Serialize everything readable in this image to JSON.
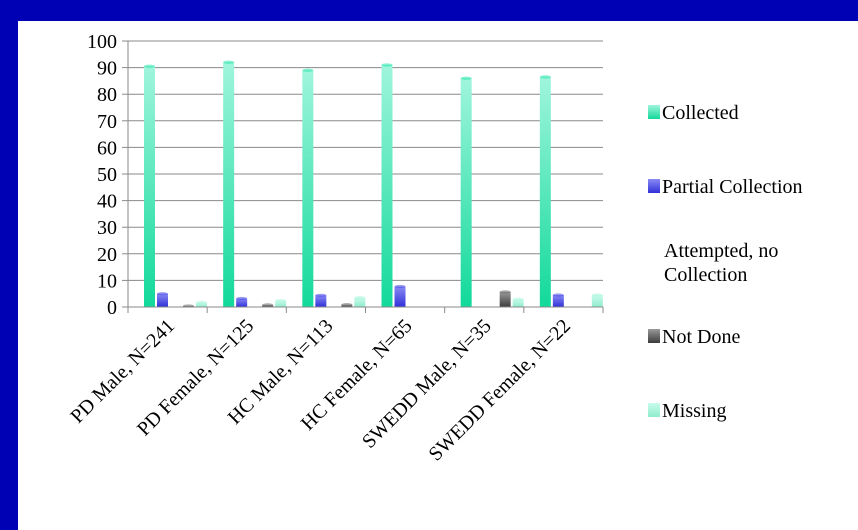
{
  "chart_data": {
    "type": "bar",
    "title": "",
    "xlabel": "",
    "ylabel": "",
    "ylim": [
      0,
      100
    ],
    "yticks": [
      0,
      10,
      20,
      30,
      40,
      50,
      60,
      70,
      80,
      90,
      100
    ],
    "grid": true,
    "legend_position": "right",
    "categories": [
      "PD Male, N=241",
      "PD Female, N=125",
      "HC Male, N=113",
      "HC Female, N=65",
      "SWEDD Male, N=35",
      "SWEDD Female, N=22"
    ],
    "series": [
      {
        "name": "Collected",
        "color": "#1fe3a6",
        "values": [
          90.5,
          92,
          89,
          91,
          86,
          86.5
        ]
      },
      {
        "name": "Partial Collection",
        "color": "#4a4ae6",
        "values": [
          5,
          3.2,
          4.4,
          7.7,
          0,
          4.5
        ]
      },
      {
        "name": "Attempted, no Collection",
        "color": "#ffffff",
        "values": [
          0,
          0,
          0,
          0,
          0,
          0
        ]
      },
      {
        "name": "Not Done",
        "color": "#6b6b6b",
        "values": [
          0.4,
          0.8,
          0.9,
          0,
          5.7,
          0
        ]
      },
      {
        "name": "Missing",
        "color": "#a9f5dd",
        "values": [
          1.7,
          2.4,
          3.5,
          0,
          2.9,
          4.5
        ]
      }
    ]
  }
}
